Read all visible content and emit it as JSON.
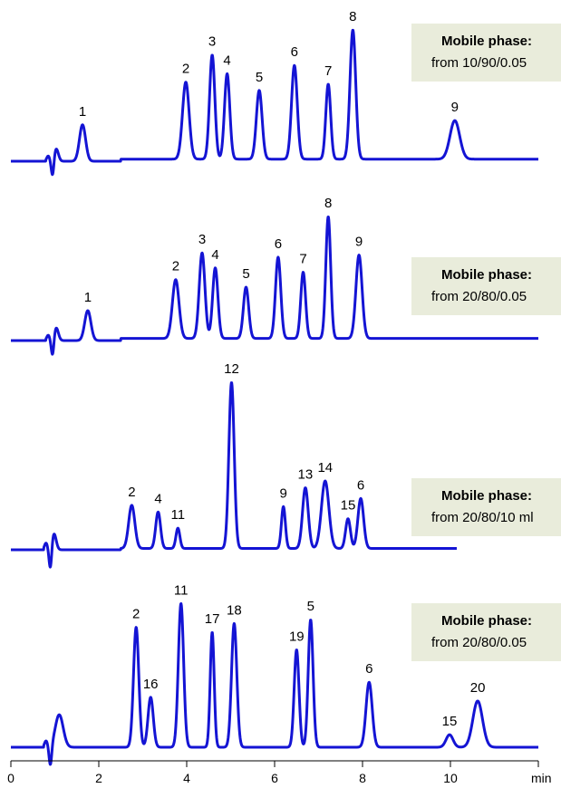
{
  "chart_data": {
    "type": "line",
    "x_axis": {
      "unit": "min",
      "xlim": [
        0,
        12
      ],
      "ticks": [
        0,
        2,
        4,
        6,
        8,
        10
      ],
      "tick_labels": [
        "0",
        "2",
        "4",
        "6",
        "8",
        "10"
      ]
    },
    "panels": [
      {
        "mobile_phase_title": "Mobile phase:",
        "mobile_phase_text": "from 10/90/0.05",
        "trace_end_min": 12,
        "baseline_level": 0.02,
        "injection_min": 0.95,
        "peaks": [
          {
            "label": "1",
            "rt": 1.63,
            "height": 0.35
          },
          {
            "label": "2",
            "rt": 3.98,
            "height": 0.74
          },
          {
            "label": "3",
            "rt": 4.58,
            "height": 1.0
          },
          {
            "label": "4",
            "rt": 4.92,
            "height": 0.82
          },
          {
            "label": "5",
            "rt": 5.65,
            "height": 0.66
          },
          {
            "label": "6",
            "rt": 6.45,
            "height": 0.9
          },
          {
            "label": "7",
            "rt": 7.22,
            "height": 0.72
          },
          {
            "label": "8",
            "rt": 7.78,
            "height": 1.24
          },
          {
            "label": "9",
            "rt": 10.1,
            "height": 0.37
          }
        ]
      },
      {
        "mobile_phase_title": "Mobile phase:",
        "mobile_phase_text": "from 20/80/0.05",
        "trace_end_min": 12,
        "baseline_level": 0.02,
        "injection_min": 0.95,
        "peaks": [
          {
            "label": "1",
            "rt": 1.75,
            "height": 0.28
          },
          {
            "label": "2",
            "rt": 3.75,
            "height": 0.55
          },
          {
            "label": "3",
            "rt": 4.35,
            "height": 0.8
          },
          {
            "label": "4",
            "rt": 4.65,
            "height": 0.66
          },
          {
            "label": "5",
            "rt": 5.35,
            "height": 0.48
          },
          {
            "label": "6",
            "rt": 6.08,
            "height": 0.76
          },
          {
            "label": "7",
            "rt": 6.65,
            "height": 0.62
          },
          {
            "label": "8",
            "rt": 7.22,
            "height": 1.14
          },
          {
            "label": "9",
            "rt": 7.92,
            "height": 0.78
          }
        ]
      },
      {
        "mobile_phase_title": "Mobile phase:",
        "mobile_phase_text": "from 20/80/10 ml",
        "trace_end_min": 10.15,
        "baseline_level": 0.01,
        "injection_min": 0.9,
        "peaks": [
          {
            "label": "2",
            "rt": 2.75,
            "height": 0.32
          },
          {
            "label": "4",
            "rt": 3.35,
            "height": 0.27
          },
          {
            "label": "11",
            "rt": 3.8,
            "height": 0.15
          },
          {
            "label": "12",
            "rt": 5.02,
            "height": 1.23
          },
          {
            "label": "9",
            "rt": 6.2,
            "height": 0.31
          },
          {
            "label": "13",
            "rt": 6.7,
            "height": 0.45
          },
          {
            "label": "14",
            "rt": 7.15,
            "height": 0.5
          },
          {
            "label": "15",
            "rt": 7.67,
            "height": 0.22
          },
          {
            "label": "6",
            "rt": 7.96,
            "height": 0.37
          }
        ]
      },
      {
        "mobile_phase_title": "Mobile phase:",
        "mobile_phase_text": "from 20/80/0.05",
        "trace_end_min": 12,
        "baseline_level": 0.0,
        "injection_min": 0.9,
        "peaks": [
          {
            "label": "2",
            "rt": 2.85,
            "height": 0.96
          },
          {
            "label": "16",
            "rt": 3.18,
            "height": 0.4
          },
          {
            "label": "11",
            "rt": 3.87,
            "height": 1.15
          },
          {
            "label": "17",
            "rt": 4.58,
            "height": 0.92
          },
          {
            "label": "18",
            "rt": 5.08,
            "height": 0.99
          },
          {
            "label": "19",
            "rt": 6.5,
            "height": 0.78
          },
          {
            "label": "5",
            "rt": 6.82,
            "height": 1.02
          },
          {
            "label": "6",
            "rt": 8.15,
            "height": 0.52
          },
          {
            "label": "15",
            "rt": 9.98,
            "height": 0.1
          },
          {
            "label": "20",
            "rt": 10.62,
            "height": 0.37
          }
        ]
      }
    ]
  },
  "colors": {
    "trace": "#1414d4",
    "box_background": "#e9ecdb"
  }
}
